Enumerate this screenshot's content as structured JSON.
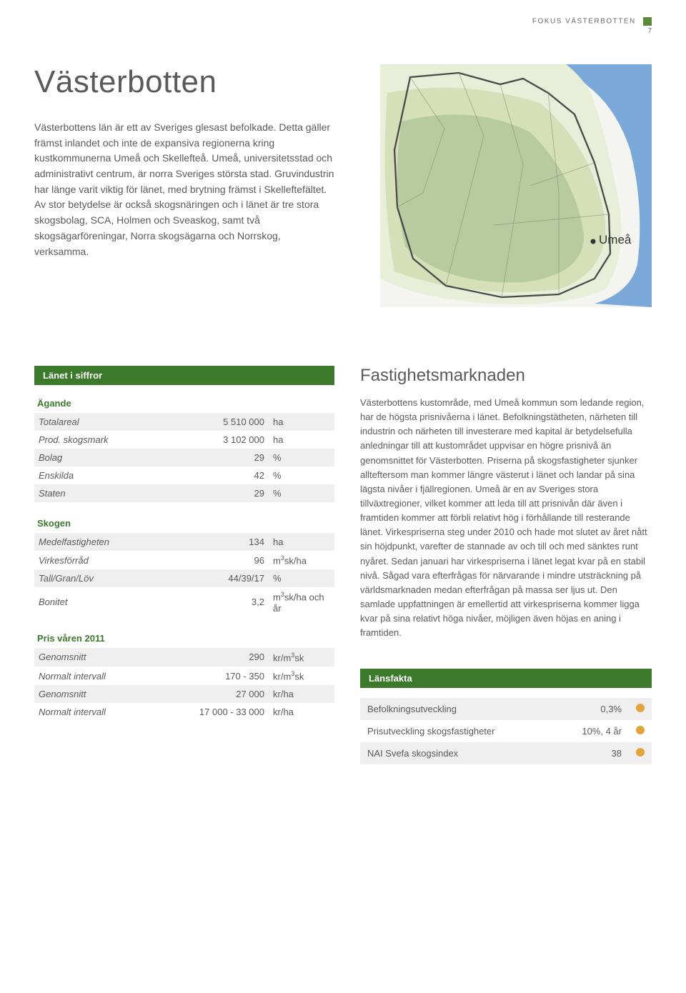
{
  "header": {
    "kicker": "FOKUS VÄSTERBOTTEN",
    "page_number": "7",
    "accent_color": "#5a8a3a"
  },
  "intro": {
    "title": "Västerbotten",
    "paragraph": "Västerbottens län är ett av Sveriges glesast befolkade. Detta gäller främst inlandet och inte de expansiva regionerna kring kustkommunerna Umeå och Skellefteå. Umeå, universitetsstad och administrativt centrum, är norra Sveriges största stad. Gruvindustrin har länge varit viktig för länet, med brytning främst i Skelleftefältet. Av stor betydelse är också skogsnäringen och i länet är tre stora skogsbolag, SCA, Holmen och Sveaskog, samt två skogsägarföreningar, Norra skogsägarna och Norrskog, verksamma."
  },
  "map": {
    "city_label": "Umeå",
    "colors": {
      "water": "#7aa8d8",
      "land_light": "#e8efd9",
      "land_mid": "#d5e0b8",
      "land_dark": "#b8caa0",
      "outline": "#4a4a4a",
      "frame": "#f4f4f0"
    }
  },
  "siffror": {
    "bar_title": "Länet i siffror",
    "bar_color": "#3b7a2a",
    "groups": [
      {
        "heading": "Ägande",
        "rows": [
          {
            "label": "Totalareal",
            "value": "5 510 000",
            "unit": "ha",
            "shaded": true
          },
          {
            "label": "Prod. skogsmark",
            "value": "3 102 000",
            "unit": "ha",
            "shaded": false
          },
          {
            "label": "Bolag",
            "value": "29",
            "unit": "%",
            "shaded": true
          },
          {
            "label": "Enskilda",
            "value": "42",
            "unit": "%",
            "shaded": false
          },
          {
            "label": "Staten",
            "value": "29",
            "unit": "%",
            "shaded": true
          }
        ]
      },
      {
        "heading": "Skogen",
        "rows": [
          {
            "label": "Medelfastigheten",
            "value": "134",
            "unit": "ha",
            "shaded": true
          },
          {
            "label": "Virkesförråd",
            "value": "96",
            "unit": "m³sk/ha",
            "shaded": false
          },
          {
            "label": "Tall/Gran/Löv",
            "value": "44/39/17",
            "unit": "%",
            "shaded": true
          },
          {
            "label": "Bonitet",
            "value": "3,2",
            "unit": "m³sk/ha och år",
            "shaded": false
          }
        ]
      },
      {
        "heading": "Pris våren 2011",
        "rows": [
          {
            "label": "Genomsnitt",
            "value": "290",
            "unit": "kr/m³sk",
            "shaded": true
          },
          {
            "label": "Normalt intervall",
            "value": "170 - 350",
            "unit": "kr/m³sk",
            "shaded": false
          },
          {
            "label": "Genomsnitt",
            "value": "27 000",
            "unit": "kr/ha",
            "shaded": true
          },
          {
            "label": "Normalt intervall",
            "value": "17 000 - 33 000",
            "unit": "kr/ha",
            "shaded": false
          }
        ]
      }
    ]
  },
  "market": {
    "title": "Fastighetsmarknaden",
    "paragraph": "Västerbottens kustområde, med Umeå kommun som ledande region, har de högsta prisnivåerna i länet. Befolkningstätheten, närheten till industrin och närheten till investerare med kapital är betydelsefulla anledningar till att kustområdet uppvisar en högre prisnivå än genomsnittet för Västerbotten. Priserna på skogsfastigheter sjunker allteftersom man kommer längre västerut i länet och landar på sina lägsta nivåer i fjällregionen. Umeå är en av Sveriges stora tillväxtregioner, vilket kommer att leda till att prisnivån där även i framtiden kommer att förbli relativt hög i förhållande till resterande länet. Virkespriserna steg under 2010 och hade mot slutet av året nått sin höjdpunkt, varefter de stannade av och till och med sänktes runt nyåret. Sedan januari har virkespriserna i länet legat kvar på en stabil nivå. Sågad vara efterfrågas för närvarande i mindre utsträckning på världsmarknaden medan efterfrågan på massa ser ljus ut. Den samlade uppfattningen är emellertid att virkespriserna kommer ligga kvar på sina relativt höga nivåer, möjligen även höjas en aning i framtiden."
  },
  "facts": {
    "bar_title": "Länsfakta",
    "bar_color": "#3b7a2a",
    "dot_color": "#e2a33a",
    "rows": [
      {
        "label": "Befolkningsutveckling",
        "value": "0,3%",
        "shaded": true
      },
      {
        "label": "Prisutveckling skogsfastigheter",
        "value": "10%, 4 år",
        "shaded": false
      },
      {
        "label": "NAI Svefa skogsindex",
        "value": "38",
        "shaded": true
      }
    ]
  }
}
